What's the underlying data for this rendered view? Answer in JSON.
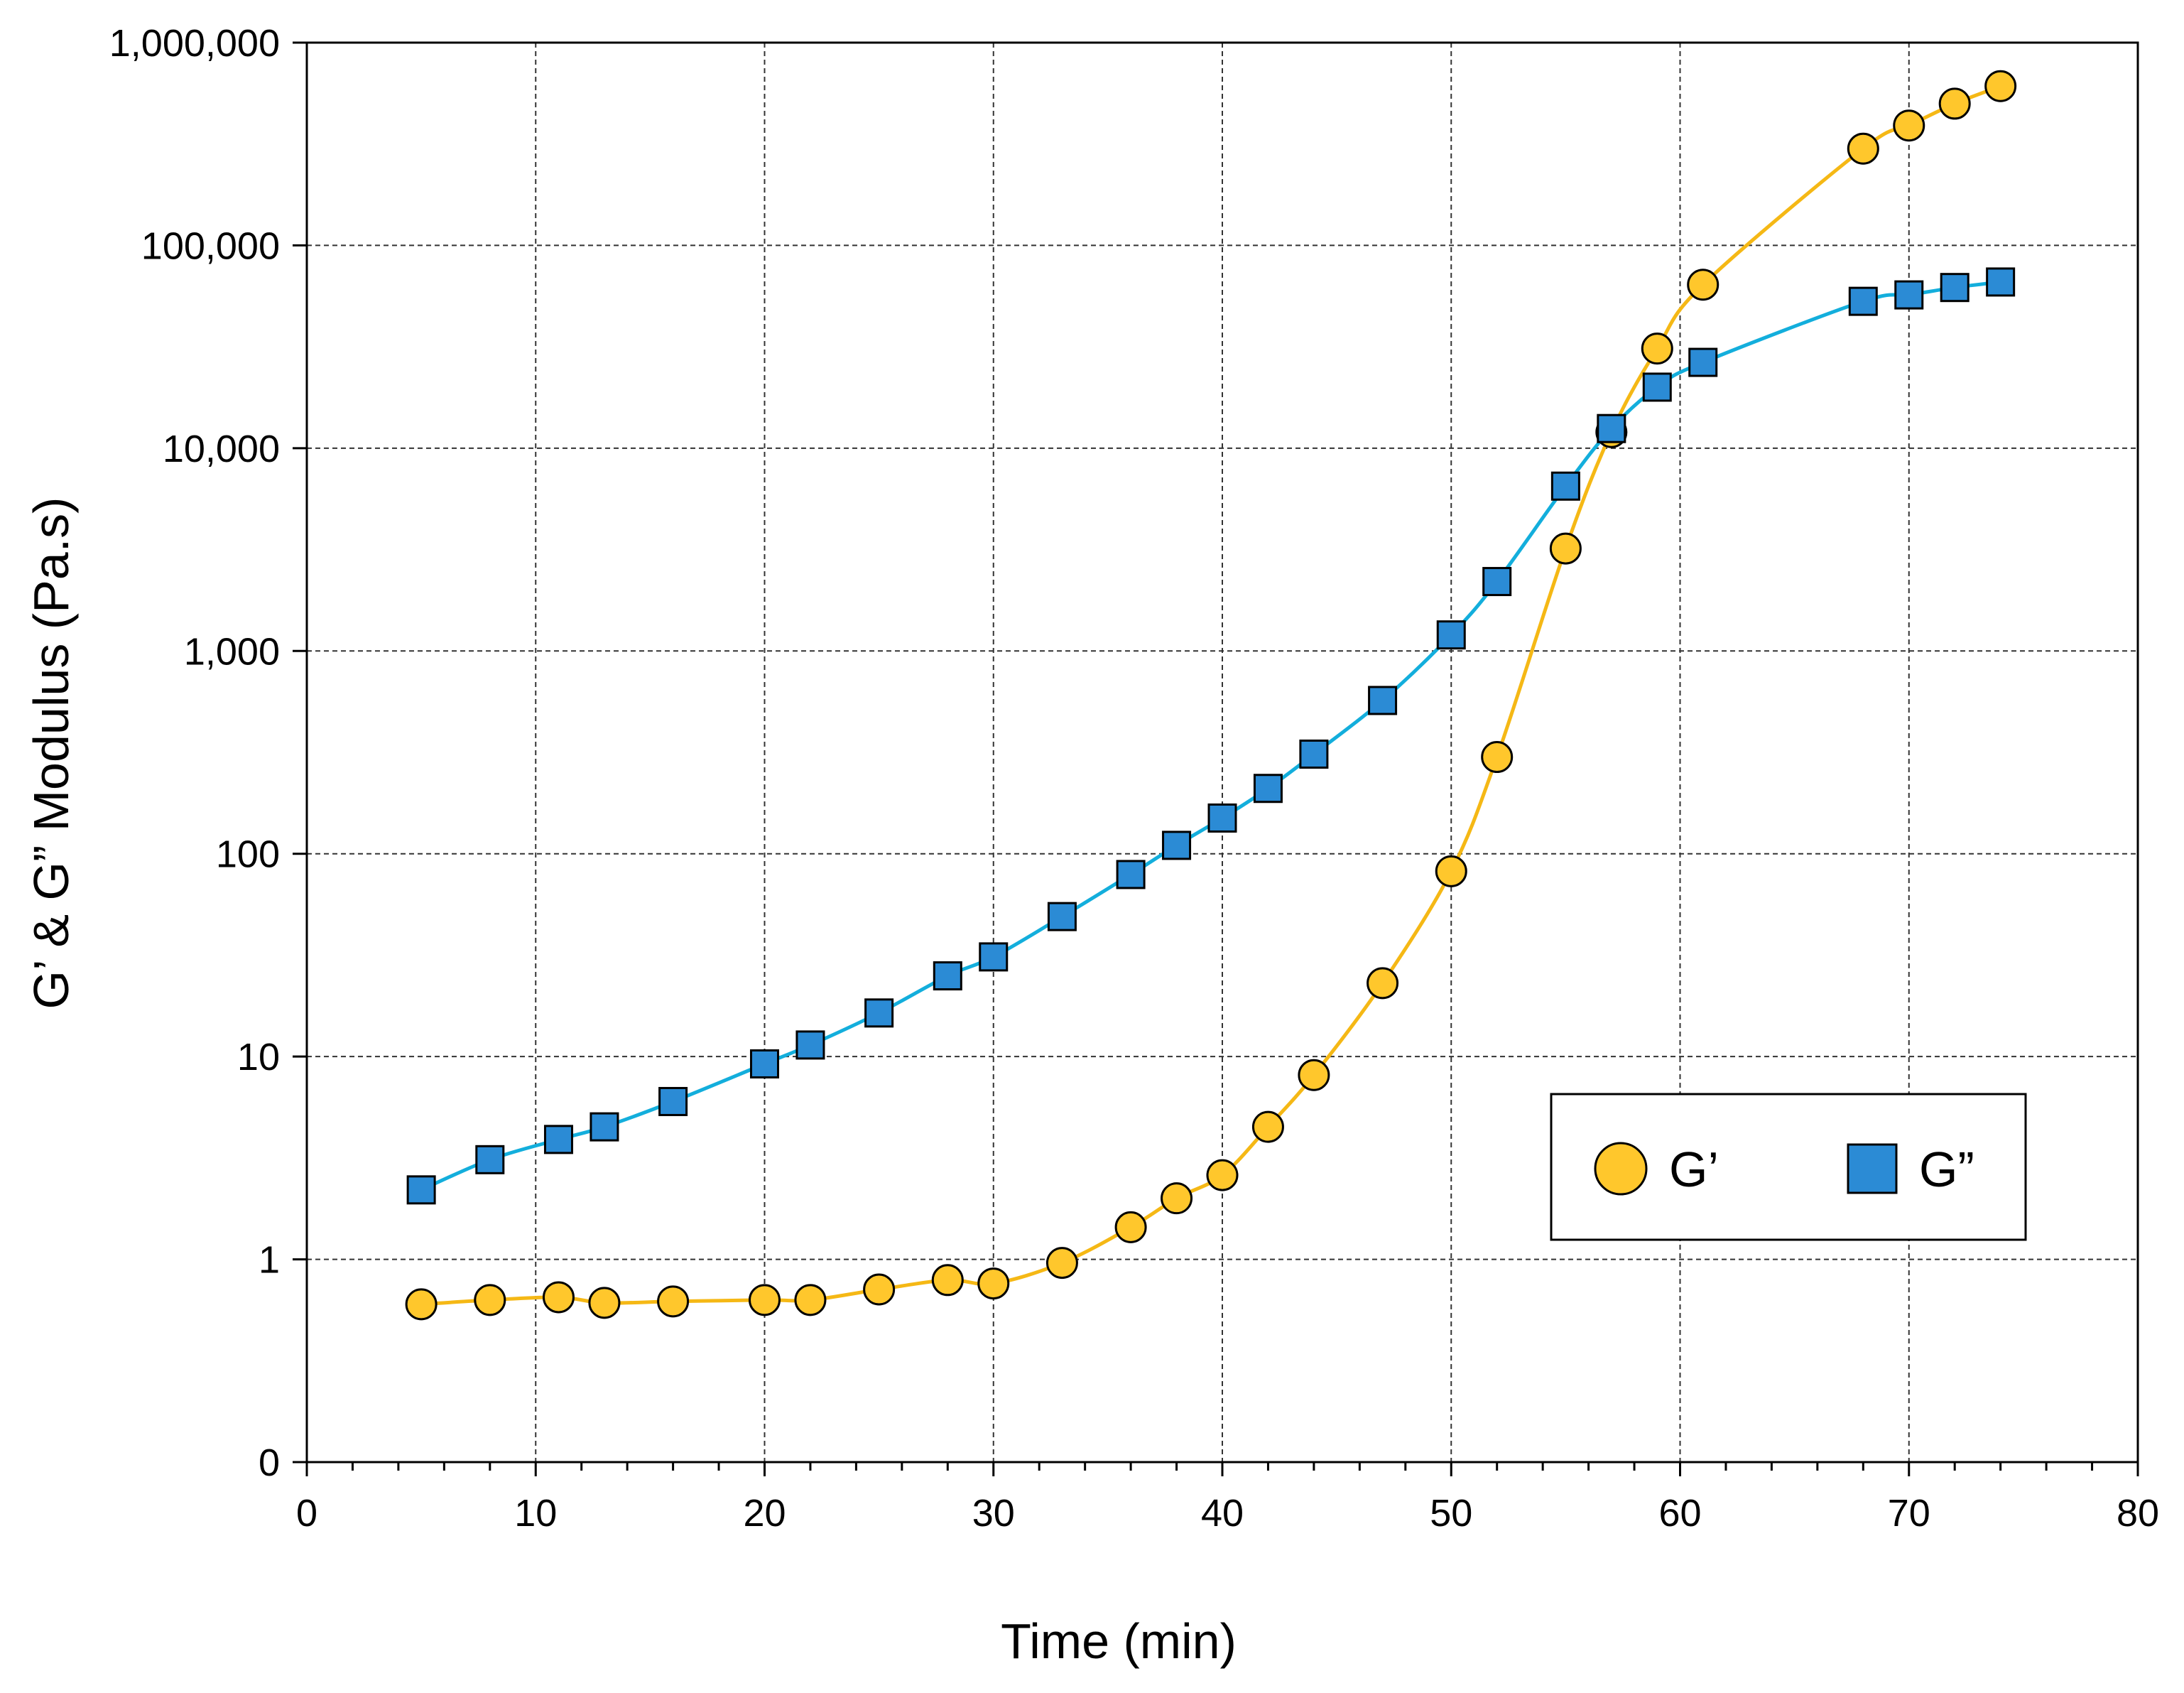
{
  "chart_data": {
    "type": "line",
    "title": "",
    "xlabel": "Time (min)",
    "ylabel": "G’ & G” Modulus (Pa.s)",
    "xlim": [
      0,
      80
    ],
    "x_ticks": [
      0,
      10,
      20,
      30,
      40,
      50,
      60,
      70,
      80
    ],
    "x_tick_labels": [
      "0",
      "10",
      "20",
      "30",
      "40",
      "50",
      "60",
      "70",
      "80"
    ],
    "y_scale": "log",
    "ylim": [
      0.1,
      1000000
    ],
    "y_ticks": [
      0.1,
      1,
      10,
      100,
      1000,
      10000,
      100000,
      1000000
    ],
    "y_tick_labels": [
      "0",
      "1",
      "10",
      "100",
      "1,000",
      "10,000",
      "100,000",
      "1,000,000"
    ],
    "grid": true,
    "legend_position": "bottom-right",
    "series": [
      {
        "name": "G’",
        "marker": "circle",
        "line_color": "#F5B815",
        "marker_fill": "#FFC72C",
        "x": [
          5,
          8,
          11,
          13,
          16,
          20,
          22,
          25,
          28,
          30,
          33,
          36,
          38,
          40,
          42,
          44,
          47,
          50,
          52,
          55,
          57,
          59,
          61,
          68,
          70,
          72,
          74
        ],
        "values": [
          0.6,
          0.63,
          0.65,
          0.61,
          0.62,
          0.63,
          0.63,
          0.71,
          0.79,
          0.76,
          0.96,
          1.44,
          2.0,
          2.6,
          4.5,
          8.1,
          23,
          82,
          300,
          3200,
          12000,
          31000,
          64000,
          300000,
          390000,
          500000,
          610000
        ]
      },
      {
        "name": "G”",
        "marker": "square",
        "line_color": "#13AEDC",
        "marker_fill": "#2B8BD5",
        "x": [
          5,
          8,
          11,
          13,
          16,
          20,
          22,
          25,
          28,
          30,
          33,
          36,
          38,
          40,
          42,
          44,
          47,
          50,
          52,
          55,
          57,
          59,
          61,
          68,
          70,
          72,
          74
        ],
        "values": [
          2.2,
          3.1,
          3.9,
          4.5,
          6.0,
          9.2,
          11.4,
          16.4,
          25,
          31,
          49,
          79,
          110,
          150,
          210,
          310,
          570,
          1200,
          2200,
          6500,
          12500,
          20000,
          26500,
          53000,
          57000,
          62000,
          66000
        ]
      }
    ]
  }
}
